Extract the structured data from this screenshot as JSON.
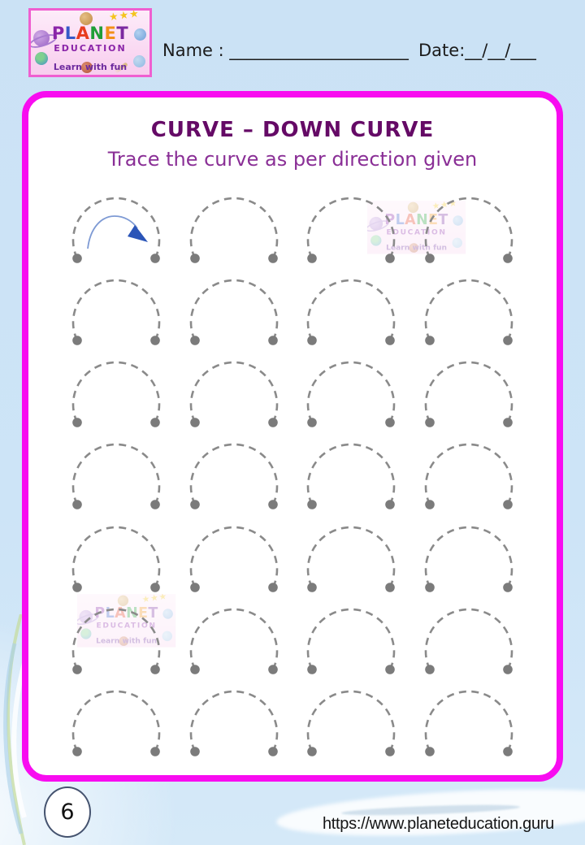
{
  "header": {
    "logo": {
      "planet_letters": [
        {
          "ch": "P",
          "color": "#8a24a8"
        },
        {
          "ch": "L",
          "color": "#3558c8"
        },
        {
          "ch": "A",
          "color": "#e83c20"
        },
        {
          "ch": "N",
          "color": "#209e38"
        },
        {
          "ch": "E",
          "color": "#f29018"
        },
        {
          "ch": "T",
          "color": "#7b2aa0"
        }
      ],
      "education": "EDUCATION",
      "tagline": "Learn with fun",
      "stars": "★★★"
    },
    "name_line": "Name : _____________________",
    "date_line": "Date:__/__/___"
  },
  "worksheet": {
    "title": "CURVE – DOWN CURVE",
    "subtitle": "Trace the curve as per direction given",
    "grid": {
      "rows": 7,
      "cols": 4
    },
    "curve_count": 28,
    "direction_arrow": {
      "description": "blue curved arrow showing left-to-right trace direction",
      "row": 1,
      "col": 1
    }
  },
  "footer": {
    "page_number": "6",
    "url": "https://www.planeteducation.guru"
  },
  "colors": {
    "curve_dash": "#8a8a8a",
    "curve_dot": "#7b7b7b",
    "arrow_line": "#7e9ad4",
    "arrow_head": "#2b55b8",
    "card_border": "#f80cf0",
    "title": "#650a66",
    "subtitle": "#8a2f96",
    "logo_border": "#ef5fd0",
    "logo_bg": "#fbd9f1",
    "education_color": "#8a24a8",
    "tagline_color": "#6d2b9e",
    "stars_color": "#f4c41d",
    "page_bg": "#cde3f6",
    "badge_border": "#45536f",
    "text": "#1b1b1b"
  }
}
